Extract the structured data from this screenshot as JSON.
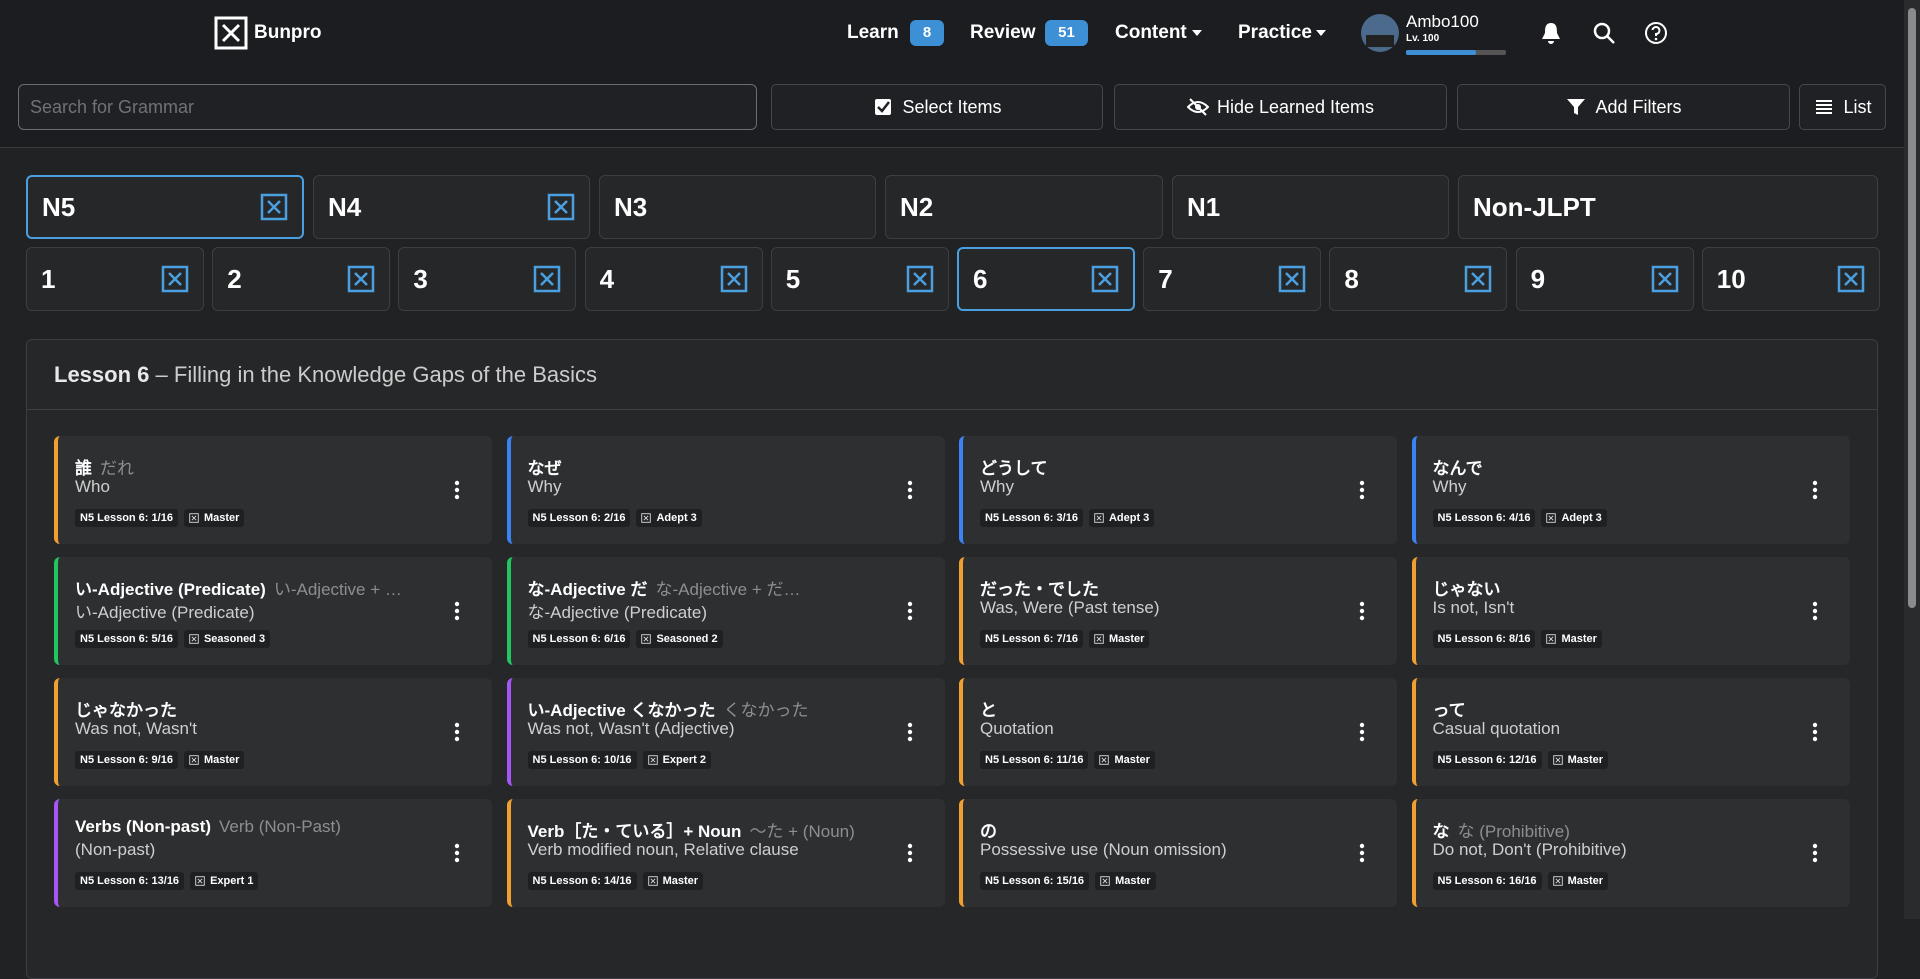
{
  "nav": {
    "logo": "Bunpro",
    "learn": {
      "label": "Learn",
      "count": "8"
    },
    "review": {
      "label": "Review",
      "count": "51"
    },
    "content": "Content",
    "practice": "Practice",
    "user": "Ambo100",
    "user_level": "Lv. 100"
  },
  "toolbar": {
    "search_placeholder": "Search for Grammar",
    "buttons": [
      "Select Items",
      "Hide Learned Items",
      "Add Filters",
      "List"
    ]
  },
  "levels": [
    {
      "label": "N5",
      "icon": true,
      "active": true
    },
    {
      "label": "N4",
      "icon": true,
      "active": false
    },
    {
      "label": "N3",
      "icon": false,
      "active": false
    },
    {
      "label": "N2",
      "icon": false,
      "active": false
    },
    {
      "label": "N1",
      "icon": false,
      "active": false
    },
    {
      "label": "Non-JLPT",
      "icon": false,
      "active": false
    }
  ],
  "lessons": [
    {
      "label": "1",
      "active": false
    },
    {
      "label": "2",
      "active": false
    },
    {
      "label": "3",
      "active": false
    },
    {
      "label": "4",
      "active": false
    },
    {
      "label": "5",
      "active": false
    },
    {
      "label": "6",
      "active": true
    },
    {
      "label": "7",
      "active": false
    },
    {
      "label": "8",
      "active": false
    },
    {
      "label": "9",
      "active": false
    },
    {
      "label": "10",
      "active": false
    }
  ],
  "lesson": {
    "number": "Lesson 6",
    "separator": "–",
    "title": "Filling in the Knowledge Gaps of the Basics"
  },
  "cards": [
    {
      "title": "誰",
      "subtitle": "だれ",
      "meaning": "Who",
      "lesson": "N5 Lesson 6: 1/16",
      "srs": "Master",
      "color": "#f0a030"
    },
    {
      "title": "なぜ",
      "meaning": "Why",
      "lesson": "N5 Lesson 6: 2/16",
      "srs": "Adept 3",
      "color": "#3b82f6"
    },
    {
      "title": "どうして",
      "meaning": "Why",
      "lesson": "N5 Lesson 6: 3/16",
      "srs": "Adept 3",
      "color": "#3b82f6"
    },
    {
      "title": "なんで",
      "meaning": "Why",
      "lesson": "N5 Lesson 6: 4/16",
      "srs": "Adept 3",
      "color": "#3b82f6"
    },
    {
      "title": "い-Adjective (Predicate)",
      "subtitle": "い-Adjective + …",
      "meaning": "い-Adjective (Predicate)",
      "lesson": "N5 Lesson 6: 5/16",
      "srs": "Seasoned 3",
      "color": "#22c55e"
    },
    {
      "title": "な-Adjective だ",
      "subtitle": "な-Adjective + だ…",
      "meaning": "な-Adjective (Predicate)",
      "lesson": "N5 Lesson 6: 6/16",
      "srs": "Seasoned 2",
      "color": "#22c55e"
    },
    {
      "title": "だった・でした",
      "meaning": "Was, Were (Past tense)",
      "lesson": "N5 Lesson 6: 7/16",
      "srs": "Master",
      "color": "#f0a030"
    },
    {
      "title": "じゃない",
      "meaning": "Is not, Isn't",
      "lesson": "N5 Lesson 6: 8/16",
      "srs": "Master",
      "color": "#f0a030"
    },
    {
      "title": "じゃなかった",
      "meaning": "Was not, Wasn't",
      "lesson": "N5 Lesson 6: 9/16",
      "srs": "Master",
      "color": "#f0a030"
    },
    {
      "title": "い-Adjective くなかった",
      "subtitle": "くなかった",
      "meaning": "Was not, Wasn't (Adjective)",
      "lesson": "N5 Lesson 6: 10/16",
      "srs": "Expert 2",
      "color": "#a855f7"
    },
    {
      "title": "と",
      "meaning": "Quotation",
      "lesson": "N5 Lesson 6: 11/16",
      "srs": "Master",
      "color": "#f0a030"
    },
    {
      "title": "って",
      "meaning": "Casual quotation",
      "lesson": "N5 Lesson 6: 12/16",
      "srs": "Master",
      "color": "#f0a030"
    },
    {
      "title": "Verbs (Non-past)",
      "subtitle": "Verb (Non-Past)",
      "meaning": "(Non-past)",
      "lesson": "N5 Lesson 6: 13/16",
      "srs": "Expert 1",
      "color": "#a855f7"
    },
    {
      "title": "Verb［た・ている］+ Noun",
      "subtitle": "～た + (Noun)",
      "meaning": "Verb modified noun, Relative clause",
      "lesson": "N5 Lesson 6: 14/16",
      "srs": "Master",
      "color": "#f0a030"
    },
    {
      "title": "の",
      "meaning": "Possessive use (Noun omission)",
      "lesson": "N5 Lesson 6: 15/16",
      "srs": "Master",
      "color": "#f0a030"
    },
    {
      "title": "な",
      "subtitle": "な (Prohibitive)",
      "meaning": "Do not, Don't (Prohibitive)",
      "lesson": "N5 Lesson 6: 16/16",
      "srs": "Master",
      "color": "#f0a030"
    }
  ]
}
